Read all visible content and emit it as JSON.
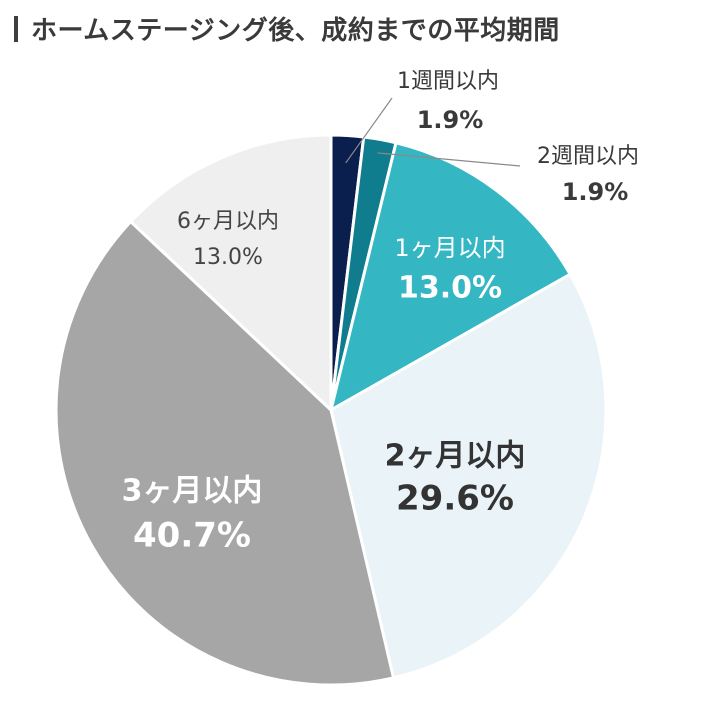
{
  "title": "ホームステージング後、成約までの平均期間",
  "chart_data": {
    "type": "pie",
    "title": "ホームステージング後、成約までの平均期間",
    "slices": [
      {
        "label": "1週間以内",
        "value": 1.9,
        "value_label": "1.9%",
        "color": "#0b1f4f",
        "label_color": "#3a3a3a"
      },
      {
        "label": "2週間以内",
        "value": 1.9,
        "value_label": "1.9%",
        "color": "#0f7d8e",
        "label_color": "#3a3a3a"
      },
      {
        "label": "1ヶ月以内",
        "value": 13.0,
        "value_label": "13.0%",
        "color": "#35b6c3",
        "label_color": "#ffffff"
      },
      {
        "label": "2ヶ月以内",
        "value": 29.6,
        "value_label": "29.6%",
        "color": "#eaf3f7",
        "label_color": "#333333"
      },
      {
        "label": "3ヶ月以内",
        "value": 40.7,
        "value_label": "40.7%",
        "color": "#a6a6a6",
        "label_color": "#ffffff"
      },
      {
        "label": "6ヶ月以内",
        "value": 13.0,
        "value_label": "13.0%",
        "color": "#efefef",
        "label_color": "#444444"
      }
    ]
  }
}
